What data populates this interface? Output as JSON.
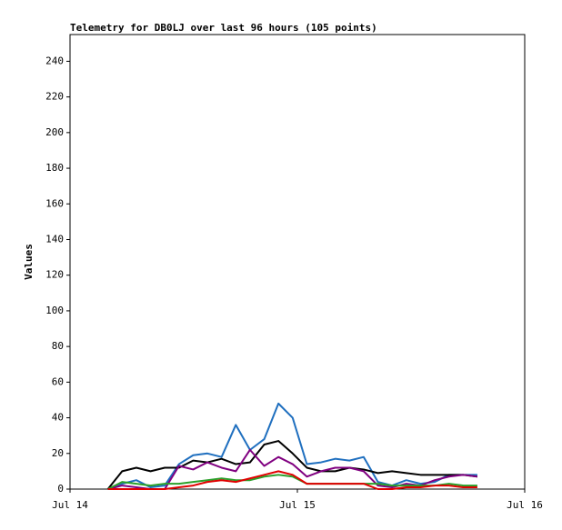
{
  "chart_data": {
    "type": "line",
    "title": "Telemetry for DB0LJ over last 96 hours (105 points)",
    "y_label": "Values",
    "x": [
      4,
      5.5,
      7,
      8.5,
      10,
      11.5,
      13,
      14.5,
      16,
      17.5,
      19,
      20.5,
      22,
      23.5,
      25,
      26.5,
      28,
      29.5,
      31,
      32.5,
      34,
      35.5,
      37,
      38.5,
      40,
      41.5,
      43
    ],
    "series": [
      {
        "color": "#1f6fbf",
        "values": [
          0,
          3,
          5,
          1,
          2,
          14,
          19,
          20,
          18,
          36,
          22,
          28,
          48,
          40,
          14,
          15,
          17,
          16,
          18,
          4,
          2,
          5,
          3,
          4,
          8,
          8,
          8
        ]
      },
      {
        "color": "#000000",
        "values": [
          0,
          10,
          12,
          10,
          12,
          12,
          16,
          15,
          17,
          14,
          15,
          25,
          27,
          20,
          12,
          10,
          10,
          12,
          11,
          9,
          10,
          9,
          8,
          8,
          8,
          8,
          7
        ]
      },
      {
        "color": "#800080",
        "values": [
          0,
          2,
          1,
          0,
          0,
          13,
          11,
          15,
          12,
          10,
          22,
          13,
          18,
          14,
          7,
          10,
          12,
          12,
          10,
          2,
          1,
          3,
          2,
          5,
          7,
          8,
          7
        ]
      },
      {
        "color": "#2aa02a",
        "values": [
          0,
          4,
          3,
          2,
          3,
          3,
          4,
          5,
          6,
          5,
          5,
          7,
          8,
          7,
          3,
          3,
          3,
          3,
          3,
          3,
          2,
          2,
          2,
          2,
          3,
          2,
          2
        ]
      },
      {
        "color": "#e00000",
        "values": [
          0,
          0,
          0,
          0,
          0,
          1,
          2,
          4,
          5,
          4,
          6,
          8,
          10,
          8,
          3,
          3,
          3,
          3,
          3,
          0,
          0,
          1,
          1,
          2,
          2,
          1,
          1
        ]
      }
    ],
    "xlim": [
      0,
      48
    ],
    "xticks": [
      {
        "value": 0,
        "label": "Jul 14"
      },
      {
        "value": 24,
        "label": "Jul 15"
      },
      {
        "value": 48,
        "label": "Jul 16"
      }
    ],
    "ylim": [
      0,
      255
    ],
    "yticks": [
      0,
      20,
      40,
      60,
      80,
      100,
      120,
      140,
      160,
      180,
      200,
      220,
      240
    ]
  }
}
